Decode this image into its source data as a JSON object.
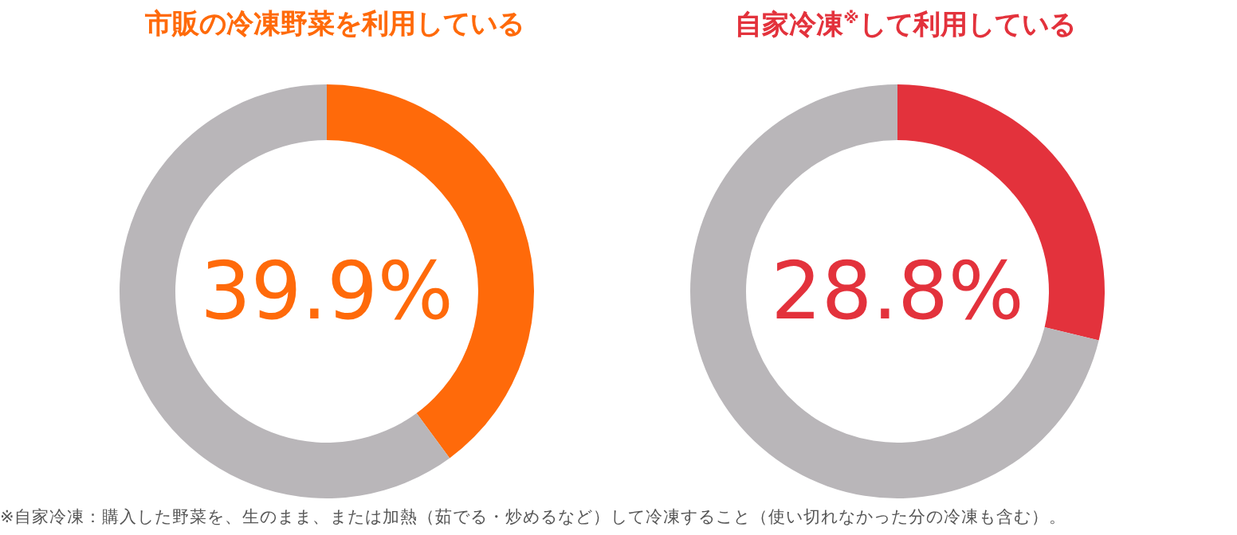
{
  "chart_data": [
    {
      "type": "donut",
      "title": "市販の冷凍野菜を利用している",
      "categories": [
        null,
        null
      ],
      "values": [
        39.9,
        60.1
      ],
      "colors": [
        "#ff6a0a",
        "#b9b6b9"
      ],
      "value_labels": [
        "39.9%",
        null
      ]
    },
    {
      "type": "donut",
      "title": "自家冷凍$^{※}$して利用している",
      "categories": [
        null,
        null
      ],
      "values": [
        28.8,
        71.2
      ],
      "colors": [
        "#e3323c",
        "#b9b6b9"
      ],
      "value_labels": [
        "28.8%",
        null
      ],
      "annotations": [
        "※自家冷凍：購入した野菜を、生のまま、または加熱（茹でる・炒めるなど）して冷凍すること（使い切れなかった分の冷凍も含む）。"
      ]
    }
  ]
}
